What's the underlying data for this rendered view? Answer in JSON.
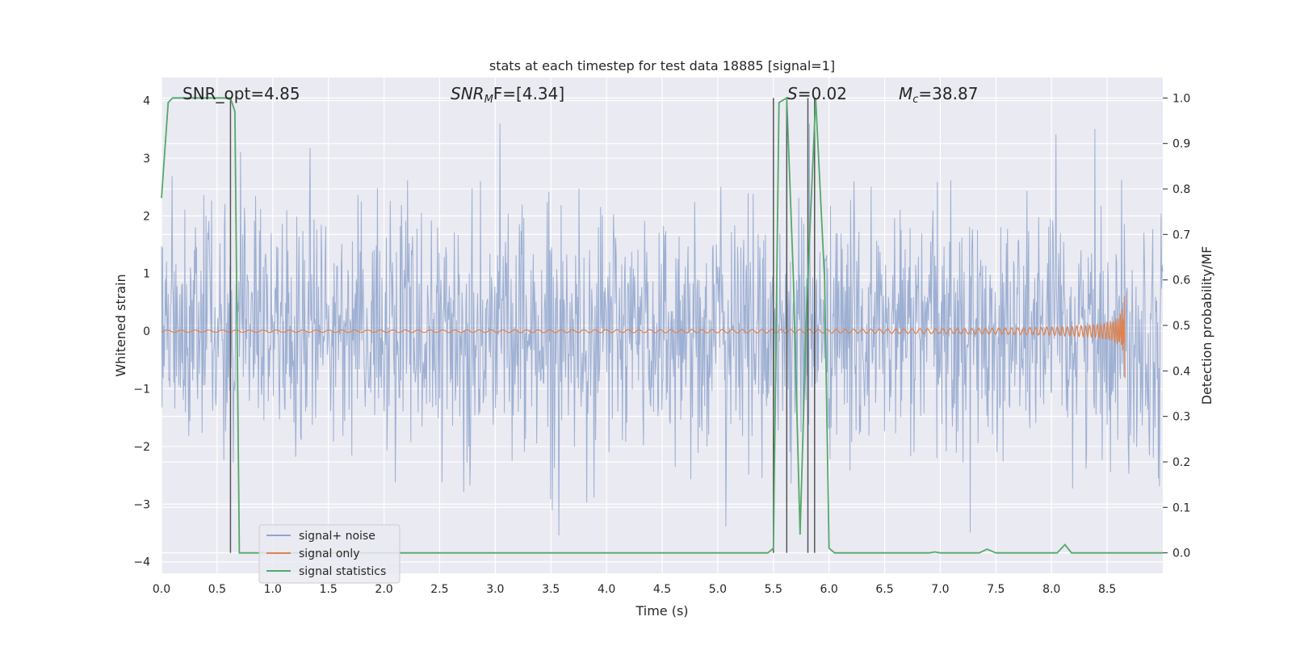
{
  "chart_data": {
    "type": "line",
    "title": "stats at each timestep for test data 18885 [signal=1]",
    "xlabel": "Time (s)",
    "ylabel": "Whitened strain",
    "ylabel_right": "Detection probability/MF",
    "xlim": [
      0.0,
      9.0
    ],
    "ylim": [
      -4.2,
      4.4
    ],
    "ylim_right": [
      -0.045,
      1.045
    ],
    "grid": true,
    "legend_position": "lower-left",
    "x_ticks": [
      "0.0",
      "0.5",
      "1.0",
      "1.5",
      "2.0",
      "2.5",
      "3.0",
      "3.5",
      "4.0",
      "4.5",
      "5.0",
      "5.5",
      "6.0",
      "6.5",
      "7.0",
      "7.5",
      "8.0",
      "8.5"
    ],
    "y_ticks": [
      "−4",
      "−3",
      "−2",
      "−1",
      "0",
      "1",
      "2",
      "3",
      "4"
    ],
    "y_ticks_right": [
      "0.0",
      "0.1",
      "0.2",
      "0.3",
      "0.4",
      "0.5",
      "0.6",
      "0.7",
      "0.8",
      "0.9",
      "1.0"
    ],
    "annotations": {
      "snr_opt": "SNR_opt=4.85",
      "snr_mf_main": "SNR",
      "snr_mf_sub": "M",
      "snr_mf_rest": "F=[4.34]",
      "s_main": "S",
      "s_rest": "=0.02",
      "mc_main": "M",
      "mc_sub": "c",
      "mc_rest": "=38.87"
    },
    "series": [
      {
        "name": "signal+ noise",
        "color": "#8fa4cc",
        "axis": "left",
        "description_values": "noise band roughly -2.5 to 2.5 with spikes to about +/-3.5"
      },
      {
        "name": "signal only",
        "color": "#dd8452",
        "axis": "left",
        "chirp_end_time": 8.66,
        "chirp_peak_amplitude": 1.2
      },
      {
        "name": "signal statistics",
        "color": "#55a868",
        "axis": "right",
        "x": [
          0.0,
          0.06,
          0.1,
          0.62,
          0.66,
          0.7,
          5.45,
          5.5,
          5.55,
          5.62,
          5.68,
          5.74,
          5.8,
          5.88,
          5.96,
          6.0,
          6.05,
          6.9,
          6.95,
          7.0,
          7.35,
          7.42,
          7.5,
          8.05,
          8.12,
          8.18,
          8.25,
          9.0
        ],
        "values": [
          0.78,
          0.99,
          1.0,
          1.0,
          0.97,
          0.0,
          0.0,
          0.01,
          0.99,
          1.0,
          0.6,
          0.04,
          0.55,
          1.0,
          0.6,
          0.01,
          0.0,
          0.0,
          0.002,
          0.0,
          0.0,
          0.008,
          0.0,
          0.0,
          0.018,
          0.0,
          0.0,
          0.0
        ]
      }
    ],
    "vertical_lines": {
      "color": "#555555",
      "x": [
        0.62,
        5.5,
        5.62,
        5.81,
        5.87
      ]
    }
  }
}
